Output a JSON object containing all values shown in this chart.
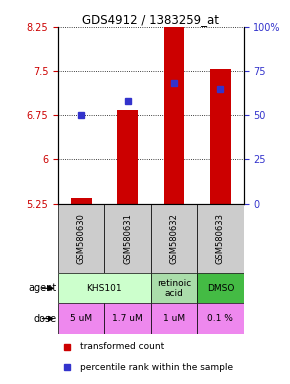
{
  "title": "GDS4912 / 1383259_at",
  "samples": [
    "GSM580630",
    "GSM580631",
    "GSM580632",
    "GSM580633"
  ],
  "bar_values": [
    5.35,
    6.83,
    8.55,
    7.53
  ],
  "bar_base": 5.25,
  "percentile_values": [
    50,
    58,
    68,
    65
  ],
  "ylim_left": [
    5.25,
    8.25
  ],
  "ylim_right": [
    0,
    100
  ],
  "yticks_left": [
    5.25,
    6.0,
    6.75,
    7.5,
    8.25
  ],
  "ytick_labels_left": [
    "5.25",
    "6",
    "6.75",
    "7.5",
    "8.25"
  ],
  "yticks_right": [
    0,
    25,
    50,
    75,
    100
  ],
  "ytick_labels_right": [
    "0",
    "25",
    "50",
    "75",
    "100%"
  ],
  "bar_color": "#cc0000",
  "dot_color": "#3333cc",
  "agent_groups": [
    {
      "start": 0,
      "end": 2,
      "label": "KHS101",
      "color": "#ccffcc"
    },
    {
      "start": 2,
      "end": 3,
      "label": "retinoic\nacid",
      "color": "#aaddaa"
    },
    {
      "start": 3,
      "end": 4,
      "label": "DMSO",
      "color": "#44bb44"
    }
  ],
  "dose_labels": [
    "5 uM",
    "1.7 uM",
    "1 uM",
    "0.1 %"
  ],
  "dose_color": "#ee88ee",
  "sample_box_color": "#cccccc",
  "left_tick_color": "#cc0000",
  "right_tick_color": "#3333cc"
}
